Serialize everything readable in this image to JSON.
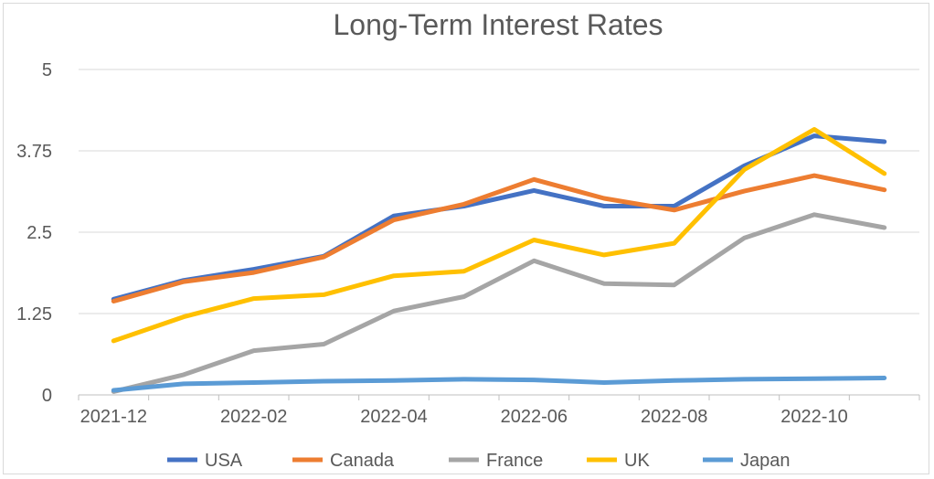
{
  "chart_data": {
    "type": "line",
    "title": "Long-Term Interest Rates",
    "xlabel": "",
    "ylabel": "",
    "ylim": [
      0,
      5
    ],
    "yticks": [
      0,
      1.25,
      2.5,
      3.75,
      5
    ],
    "ytick_labels": [
      "0",
      "1.25",
      "2.5",
      "3.75",
      "5"
    ],
    "grid": true,
    "legend_position": "bottom",
    "x": [
      "2021-12",
      "2022-01",
      "2022-02",
      "2022-03",
      "2022-04",
      "2022-05",
      "2022-06",
      "2022-07",
      "2022-08",
      "2022-09",
      "2022-10",
      "2022-11"
    ],
    "xtick_labels": [
      "2021-12",
      "2022-02",
      "2022-04",
      "2022-06",
      "2022-08",
      "2022-10"
    ],
    "series": [
      {
        "name": "USA",
        "color": "#4472C4",
        "values": [
          1.47,
          1.76,
          1.93,
          2.13,
          2.75,
          2.9,
          3.14,
          2.9,
          2.9,
          3.52,
          3.98,
          3.89
        ]
      },
      {
        "name": "Canada",
        "color": "#ED7D31",
        "values": [
          1.44,
          1.74,
          1.88,
          2.12,
          2.69,
          2.93,
          3.31,
          3.02,
          2.84,
          3.13,
          3.37,
          3.15
        ]
      },
      {
        "name": "France",
        "color": "#A5A5A5",
        "values": [
          0.05,
          0.31,
          0.68,
          0.78,
          1.29,
          1.51,
          2.06,
          1.71,
          1.69,
          2.41,
          2.77,
          2.57
        ]
      },
      {
        "name": "UK",
        "color": "#FFC000",
        "values": [
          0.83,
          1.2,
          1.48,
          1.54,
          1.83,
          1.9,
          2.38,
          2.15,
          2.33,
          3.46,
          4.08,
          3.4
        ]
      },
      {
        "name": "Japan",
        "color": "#5B9BD5",
        "values": [
          0.07,
          0.17,
          0.19,
          0.21,
          0.22,
          0.24,
          0.23,
          0.19,
          0.22,
          0.24,
          0.25,
          0.26
        ]
      }
    ]
  }
}
